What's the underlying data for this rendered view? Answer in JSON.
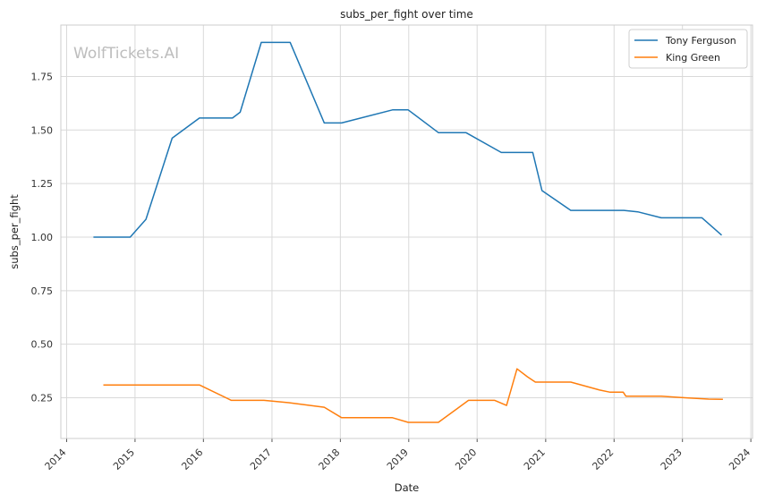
{
  "chart_data": {
    "type": "line",
    "title": "subs_per_fight over time",
    "xlabel": "Date",
    "ylabel": "subs_per_fight",
    "watermark": "WolfTickets.AI",
    "grid": true,
    "legend_position": "top-right",
    "x_ticks": [
      "2014",
      "2015",
      "2016",
      "2017",
      "2018",
      "2019",
      "2020",
      "2021",
      "2022",
      "2023",
      "2024"
    ],
    "y_ticks": [
      "0.25",
      "0.50",
      "0.75",
      "1.00",
      "1.25",
      "1.50",
      "1.75"
    ],
    "xlim": [
      "2013-12-01",
      "2024-01-10"
    ],
    "ylim": [
      0.06,
      1.99
    ],
    "series": [
      {
        "name": "Tony Ferguson",
        "color": "#1f77b4",
        "points": [
          [
            "2014-05-24",
            1.0
          ],
          [
            "2014-12-06",
            1.0
          ],
          [
            "2015-02-28",
            1.083
          ],
          [
            "2015-07-18",
            1.462
          ],
          [
            "2015-12-11",
            1.556
          ],
          [
            "2016-06-04",
            1.556
          ],
          [
            "2016-07-15",
            1.583
          ],
          [
            "2016-11-05",
            1.909
          ],
          [
            "2017-04-08",
            1.909
          ],
          [
            "2017-10-07",
            1.533
          ],
          [
            "2018-01-08",
            1.533
          ],
          [
            "2018-10-06",
            1.594
          ],
          [
            "2018-12-29",
            1.594
          ],
          [
            "2019-06-08",
            1.488
          ],
          [
            "2019-11-02",
            1.488
          ],
          [
            "2020-05-09",
            1.395
          ],
          [
            "2020-10-24",
            1.395
          ],
          [
            "2020-12-12",
            1.217
          ],
          [
            "2021-05-15",
            1.125
          ],
          [
            "2022-01-20",
            1.125
          ],
          [
            "2022-02-22",
            1.125
          ],
          [
            "2022-05-07",
            1.118
          ],
          [
            "2022-09-10",
            1.09
          ],
          [
            "2023-04-15",
            1.09
          ],
          [
            "2023-07-29",
            1.009
          ]
        ]
      },
      {
        "name": "King Green",
        "color": "#ff7f0e",
        "points": [
          [
            "2014-07-16",
            0.31
          ],
          [
            "2015-12-11",
            0.31
          ],
          [
            "2016-05-29",
            0.238
          ],
          [
            "2016-11-19",
            0.238
          ],
          [
            "2017-03-31",
            0.227
          ],
          [
            "2017-10-07",
            0.206
          ],
          [
            "2018-01-08",
            0.157
          ],
          [
            "2018-10-06",
            0.157
          ],
          [
            "2018-12-29",
            0.135
          ],
          [
            "2019-06-08",
            0.135
          ],
          [
            "2019-11-16",
            0.238
          ],
          [
            "2020-04-04",
            0.238
          ],
          [
            "2020-06-06",
            0.214
          ],
          [
            "2020-08-01",
            0.385
          ],
          [
            "2020-09-26",
            0.348
          ],
          [
            "2020-11-07",
            0.323
          ],
          [
            "2021-05-15",
            0.323
          ],
          [
            "2021-10-16",
            0.286
          ],
          [
            "2021-12-11",
            0.276
          ],
          [
            "2022-02-19",
            0.276
          ],
          [
            "2022-03-05",
            0.257
          ],
          [
            "2022-09-10",
            0.257
          ],
          [
            "2023-01-14",
            0.25
          ],
          [
            "2023-05-20",
            0.244
          ],
          [
            "2023-08-05",
            0.243
          ]
        ]
      }
    ]
  }
}
